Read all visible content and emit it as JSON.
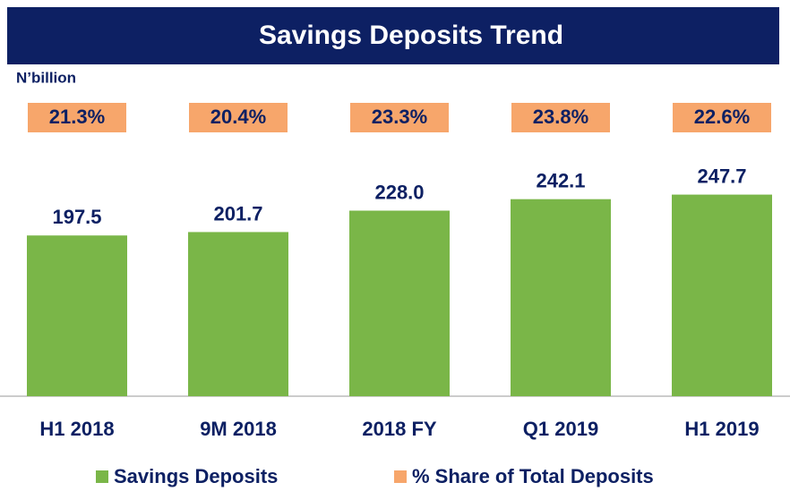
{
  "chart_data": {
    "type": "bar",
    "title": "Savings Deposits Trend",
    "unit_label": "N’billion",
    "categories": [
      "H1 2018",
      "9M 2018",
      "2018 FY",
      "Q1 2019",
      "H1 2019"
    ],
    "series": [
      {
        "name": "Savings Deposits",
        "color": "#7ab648",
        "values": [
          197.5,
          201.7,
          228.0,
          242.1,
          247.7
        ],
        "value_labels": [
          "197.5",
          "201.7",
          "228.0",
          "242.1",
          "247.7"
        ]
      },
      {
        "name": "% Share of Total Deposits",
        "color": "#f7a66b",
        "values": [
          21.3,
          20.4,
          23.3,
          23.8,
          22.6
        ],
        "value_labels": [
          "21.3%",
          "20.4%",
          "23.3%",
          "23.8%",
          "22.6%"
        ]
      }
    ]
  }
}
